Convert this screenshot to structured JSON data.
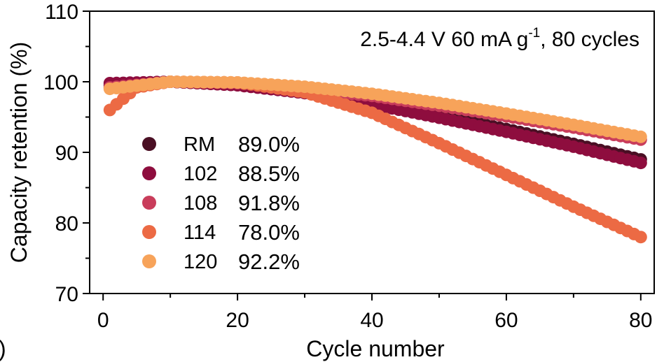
{
  "chart_data": {
    "type": "scatter",
    "annotation": "2.5-4.4 V  60 mA g",
    "annotation_sup": "-1",
    "annotation_tail": ", 80 cycles",
    "xlabel": "Cycle number",
    "ylabel": "Capacity retention (%)",
    "xlim": [
      -2,
      82
    ],
    "ylim": [
      70,
      110
    ],
    "xticks": [
      0,
      20,
      40,
      60,
      80
    ],
    "yticks": [
      70,
      80,
      90,
      100,
      110
    ],
    "panel_label": ")",
    "series": [
      {
        "name": "RM",
        "retention_label": "89.0%",
        "color": "#4a0f24",
        "points": [
          [
            1,
            99.5
          ],
          [
            10,
            100
          ],
          [
            20,
            99.6
          ],
          [
            30,
            98.6
          ],
          [
            40,
            97.1
          ],
          [
            50,
            95.2
          ],
          [
            60,
            93.3
          ],
          [
            70,
            91.2
          ],
          [
            80,
            89.0
          ]
        ]
      },
      {
        "name": "102",
        "retention_label": "88.5%",
        "color": "#8e0d3e",
        "points": [
          [
            1,
            99.8
          ],
          [
            10,
            100
          ],
          [
            20,
            99.5
          ],
          [
            30,
            98.4
          ],
          [
            40,
            96.8
          ],
          [
            50,
            94.9
          ],
          [
            60,
            92.9
          ],
          [
            70,
            90.8
          ],
          [
            80,
            88.5
          ]
        ]
      },
      {
        "name": "108",
        "retention_label": "91.8%",
        "color": "#c93d5b",
        "points": [
          [
            1,
            99.2
          ],
          [
            10,
            100
          ],
          [
            20,
            99.8
          ],
          [
            30,
            99.0
          ],
          [
            40,
            98.0
          ],
          [
            50,
            96.6
          ],
          [
            60,
            95.1
          ],
          [
            70,
            93.5
          ],
          [
            80,
            91.8
          ]
        ]
      },
      {
        "name": "114",
        "retention_label": "78.0%",
        "color": "#ec6a44",
        "points": [
          [
            1,
            96.0
          ],
          [
            5,
            99.2
          ],
          [
            10,
            100
          ],
          [
            20,
            99.9
          ],
          [
            30,
            98.5
          ],
          [
            40,
            95.6
          ],
          [
            50,
            91.3
          ],
          [
            60,
            86.8
          ],
          [
            70,
            82.3
          ],
          [
            80,
            78.0
          ]
        ]
      },
      {
        "name": "120",
        "retention_label": "92.2%",
        "color": "#f7a35a",
        "points": [
          [
            1,
            99.0
          ],
          [
            10,
            100
          ],
          [
            20,
            99.9
          ],
          [
            30,
            99.3
          ],
          [
            40,
            98.3
          ],
          [
            50,
            97.0
          ],
          [
            60,
            95.5
          ],
          [
            70,
            93.9
          ],
          [
            80,
            92.2
          ]
        ]
      }
    ]
  }
}
